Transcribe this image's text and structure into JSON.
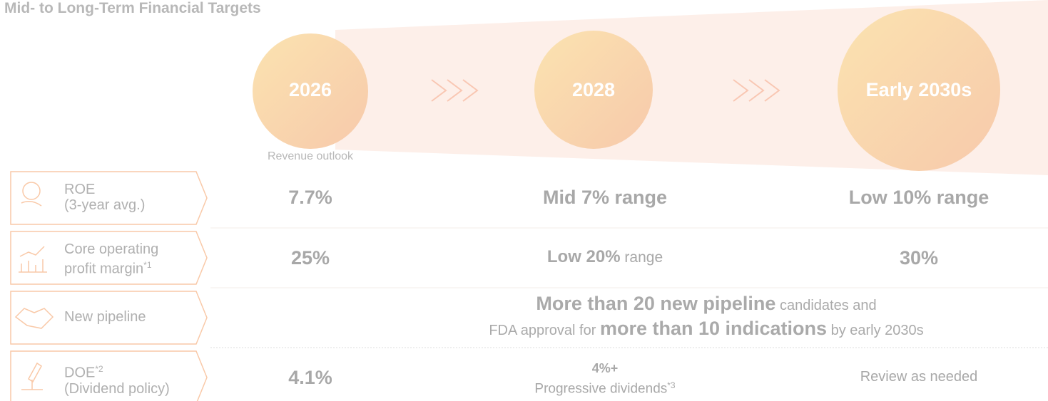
{
  "header": {
    "title": "Mid- to Long-Term Financial Targets"
  },
  "milestones": [
    {
      "year": "2026",
      "note": "Revenue outlook"
    },
    {
      "year": "2028"
    },
    {
      "year": "Early 2030s"
    }
  ],
  "rows": [
    {
      "label": [
        "ROE",
        "(3-year avg.)"
      ],
      "values": [
        "7.7%",
        "Mid 7% range",
        "Low 10% range"
      ]
    },
    {
      "label": [
        "Core operating",
        "profit margin",
        "*1"
      ],
      "values": [
        "25%",
        {
          "strong": "Low 20%",
          "rest": " range"
        },
        "30%"
      ]
    },
    {
      "label": [
        "New pipeline"
      ],
      "text": {
        "line1": [
          "More than 20 new pipeline",
          " candidates and"
        ],
        "line2": [
          "FDA approval for ",
          "more than 10 indications",
          " by early 2030s"
        ]
      }
    },
    {
      "label": [
        "DOE",
        "*2",
        "(Dividend policy)"
      ],
      "values": [
        "4.1%",
        {
          "strong": "4%+",
          "rest": "Progressive dividends",
          "sup": "*3"
        },
        "Review as needed"
      ]
    }
  ]
}
